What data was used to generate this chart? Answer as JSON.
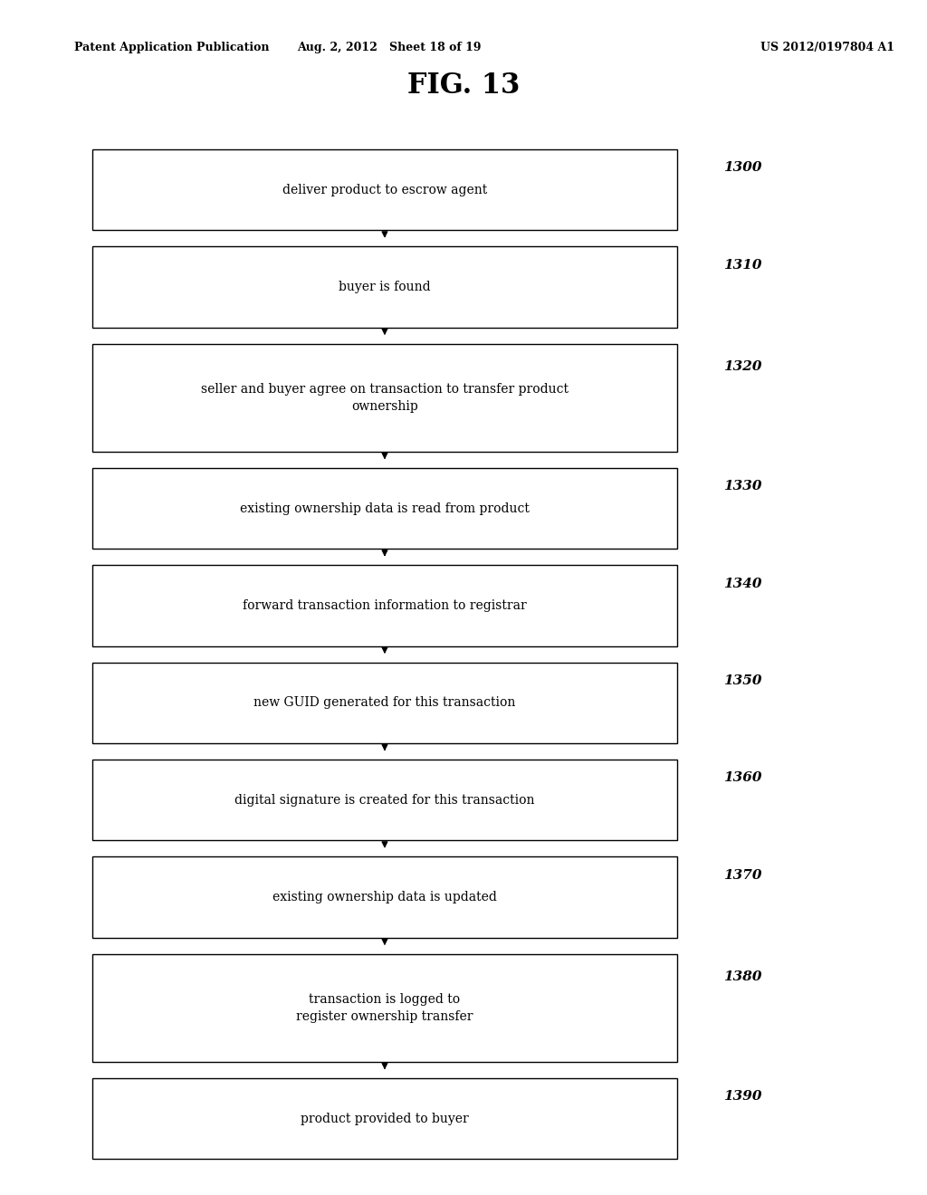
{
  "title": "FIG. 13",
  "header_left": "Patent Application Publication",
  "header_center": "Aug. 2, 2012   Sheet 18 of 19",
  "header_right": "US 2012/0197804 A1",
  "steps": [
    {
      "label": "1300",
      "text": "deliver product to escrow agent"
    },
    {
      "label": "1310",
      "text": "buyer is found"
    },
    {
      "label": "1320",
      "text": "seller and buyer agree on transaction to transfer product\nownership"
    },
    {
      "label": "1330",
      "text": "existing ownership data is read from product"
    },
    {
      "label": "1340",
      "text": "forward transaction information to registrar"
    },
    {
      "label": "1350",
      "text": "new GUID generated for this transaction"
    },
    {
      "label": "1360",
      "text": "digital signature is created for this transaction"
    },
    {
      "label": "1370",
      "text": "existing ownership data is updated"
    },
    {
      "label": "1380",
      "text": "transaction is logged to\nregister ownership transfer"
    },
    {
      "label": "1390",
      "text": "product provided to buyer"
    }
  ],
  "bg_color": "#ffffff",
  "box_edge_color": "#000000",
  "text_color": "#000000",
  "label_color": "#000000",
  "arrow_color": "#000000"
}
